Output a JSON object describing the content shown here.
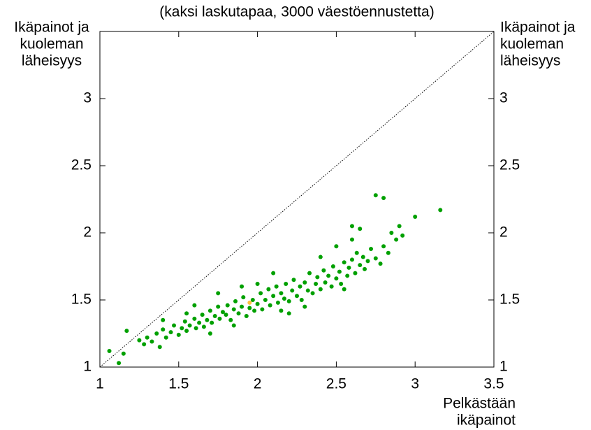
{
  "chart_data": {
    "type": "scatter",
    "title": "(kaksi laskutapaa, 3000 väestöennustetta)",
    "y_label": [
      "Ikäpainot ja",
      "kuoleman",
      "läheisyys"
    ],
    "y2_label": [
      "Ikäpainot ja",
      "kuoleman",
      "läheisyys"
    ],
    "x_label": [
      "Pelkästään",
      "ikäpainot"
    ],
    "xlim": [
      1,
      3.5
    ],
    "ylim": [
      1,
      3.5
    ],
    "xticks": [
      1,
      1.5,
      2,
      2.5,
      3,
      3.5
    ],
    "yticks": [
      1,
      1.5,
      2,
      2.5,
      3
    ],
    "y2lim": [
      1,
      3.5
    ],
    "y2ticks": [
      1,
      1.5,
      2,
      2.5,
      3
    ],
    "diagonal": true,
    "series": [
      {
        "color": "#00a000",
        "x": [
          1.25,
          1.28,
          1.3,
          1.33,
          1.36,
          1.38,
          1.4,
          1.42,
          1.45,
          1.47,
          1.5,
          1.52,
          1.54,
          1.55,
          1.57,
          1.6,
          1.61,
          1.63,
          1.65,
          1.66,
          1.68,
          1.7,
          1.71,
          1.73,
          1.75,
          1.76,
          1.78,
          1.8,
          1.81,
          1.83,
          1.85,
          1.86,
          1.88,
          1.9,
          1.91,
          1.93,
          1.95,
          1.97,
          1.98,
          2.0,
          2.02,
          2.03,
          2.05,
          2.07,
          2.08,
          2.1,
          2.12,
          2.13,
          2.15,
          2.17,
          2.18,
          2.2,
          2.22,
          2.23,
          2.25,
          2.27,
          2.28,
          2.3,
          2.32,
          2.33,
          2.35,
          2.37,
          2.38,
          2.4,
          2.42,
          2.43,
          2.45,
          2.47,
          2.48,
          2.5,
          2.52,
          2.53,
          2.55,
          2.57,
          2.58,
          2.6,
          2.62,
          2.63,
          2.65,
          2.67,
          2.68,
          2.7,
          2.72,
          2.75,
          2.78,
          2.8,
          2.83,
          2.88,
          2.92,
          1.7,
          1.85,
          2.15,
          2.3,
          2.55,
          1.4,
          1.6,
          1.75,
          1.9,
          2.0,
          2.1,
          1.55,
          2.4,
          2.5,
          2.6,
          2.2,
          2.75,
          2.8,
          3.16,
          3.0,
          1.06,
          1.12,
          1.15,
          1.17,
          2.6,
          2.65,
          2.9,
          2.85
        ],
        "y": [
          1.2,
          1.17,
          1.22,
          1.19,
          1.25,
          1.15,
          1.28,
          1.22,
          1.26,
          1.31,
          1.24,
          1.29,
          1.34,
          1.27,
          1.31,
          1.36,
          1.29,
          1.33,
          1.39,
          1.3,
          1.35,
          1.42,
          1.33,
          1.38,
          1.45,
          1.36,
          1.41,
          1.39,
          1.46,
          1.35,
          1.43,
          1.49,
          1.4,
          1.45,
          1.52,
          1.38,
          1.44,
          1.5,
          1.42,
          1.47,
          1.55,
          1.43,
          1.5,
          1.58,
          1.46,
          1.53,
          1.6,
          1.48,
          1.55,
          1.51,
          1.62,
          1.49,
          1.57,
          1.65,
          1.53,
          1.6,
          1.5,
          1.63,
          1.57,
          1.7,
          1.55,
          1.62,
          1.67,
          1.58,
          1.72,
          1.63,
          1.68,
          1.6,
          1.75,
          1.66,
          1.71,
          1.62,
          1.78,
          1.68,
          1.74,
          1.8,
          1.7,
          1.85,
          1.76,
          1.82,
          1.73,
          1.79,
          1.88,
          1.81,
          1.77,
          1.9,
          1.85,
          1.95,
          1.98,
          1.25,
          1.31,
          1.42,
          1.45,
          1.58,
          1.35,
          1.46,
          1.55,
          1.6,
          1.62,
          1.7,
          1.4,
          1.82,
          1.9,
          1.95,
          1.4,
          2.28,
          2.26,
          2.17,
          2.12,
          1.12,
          1.03,
          1.1,
          1.27,
          2.05,
          2.03,
          2.05,
          2.0
        ]
      },
      {
        "color": "#ffc040",
        "x": [
          1.95
        ],
        "y": [
          1.48
        ]
      }
    ]
  }
}
